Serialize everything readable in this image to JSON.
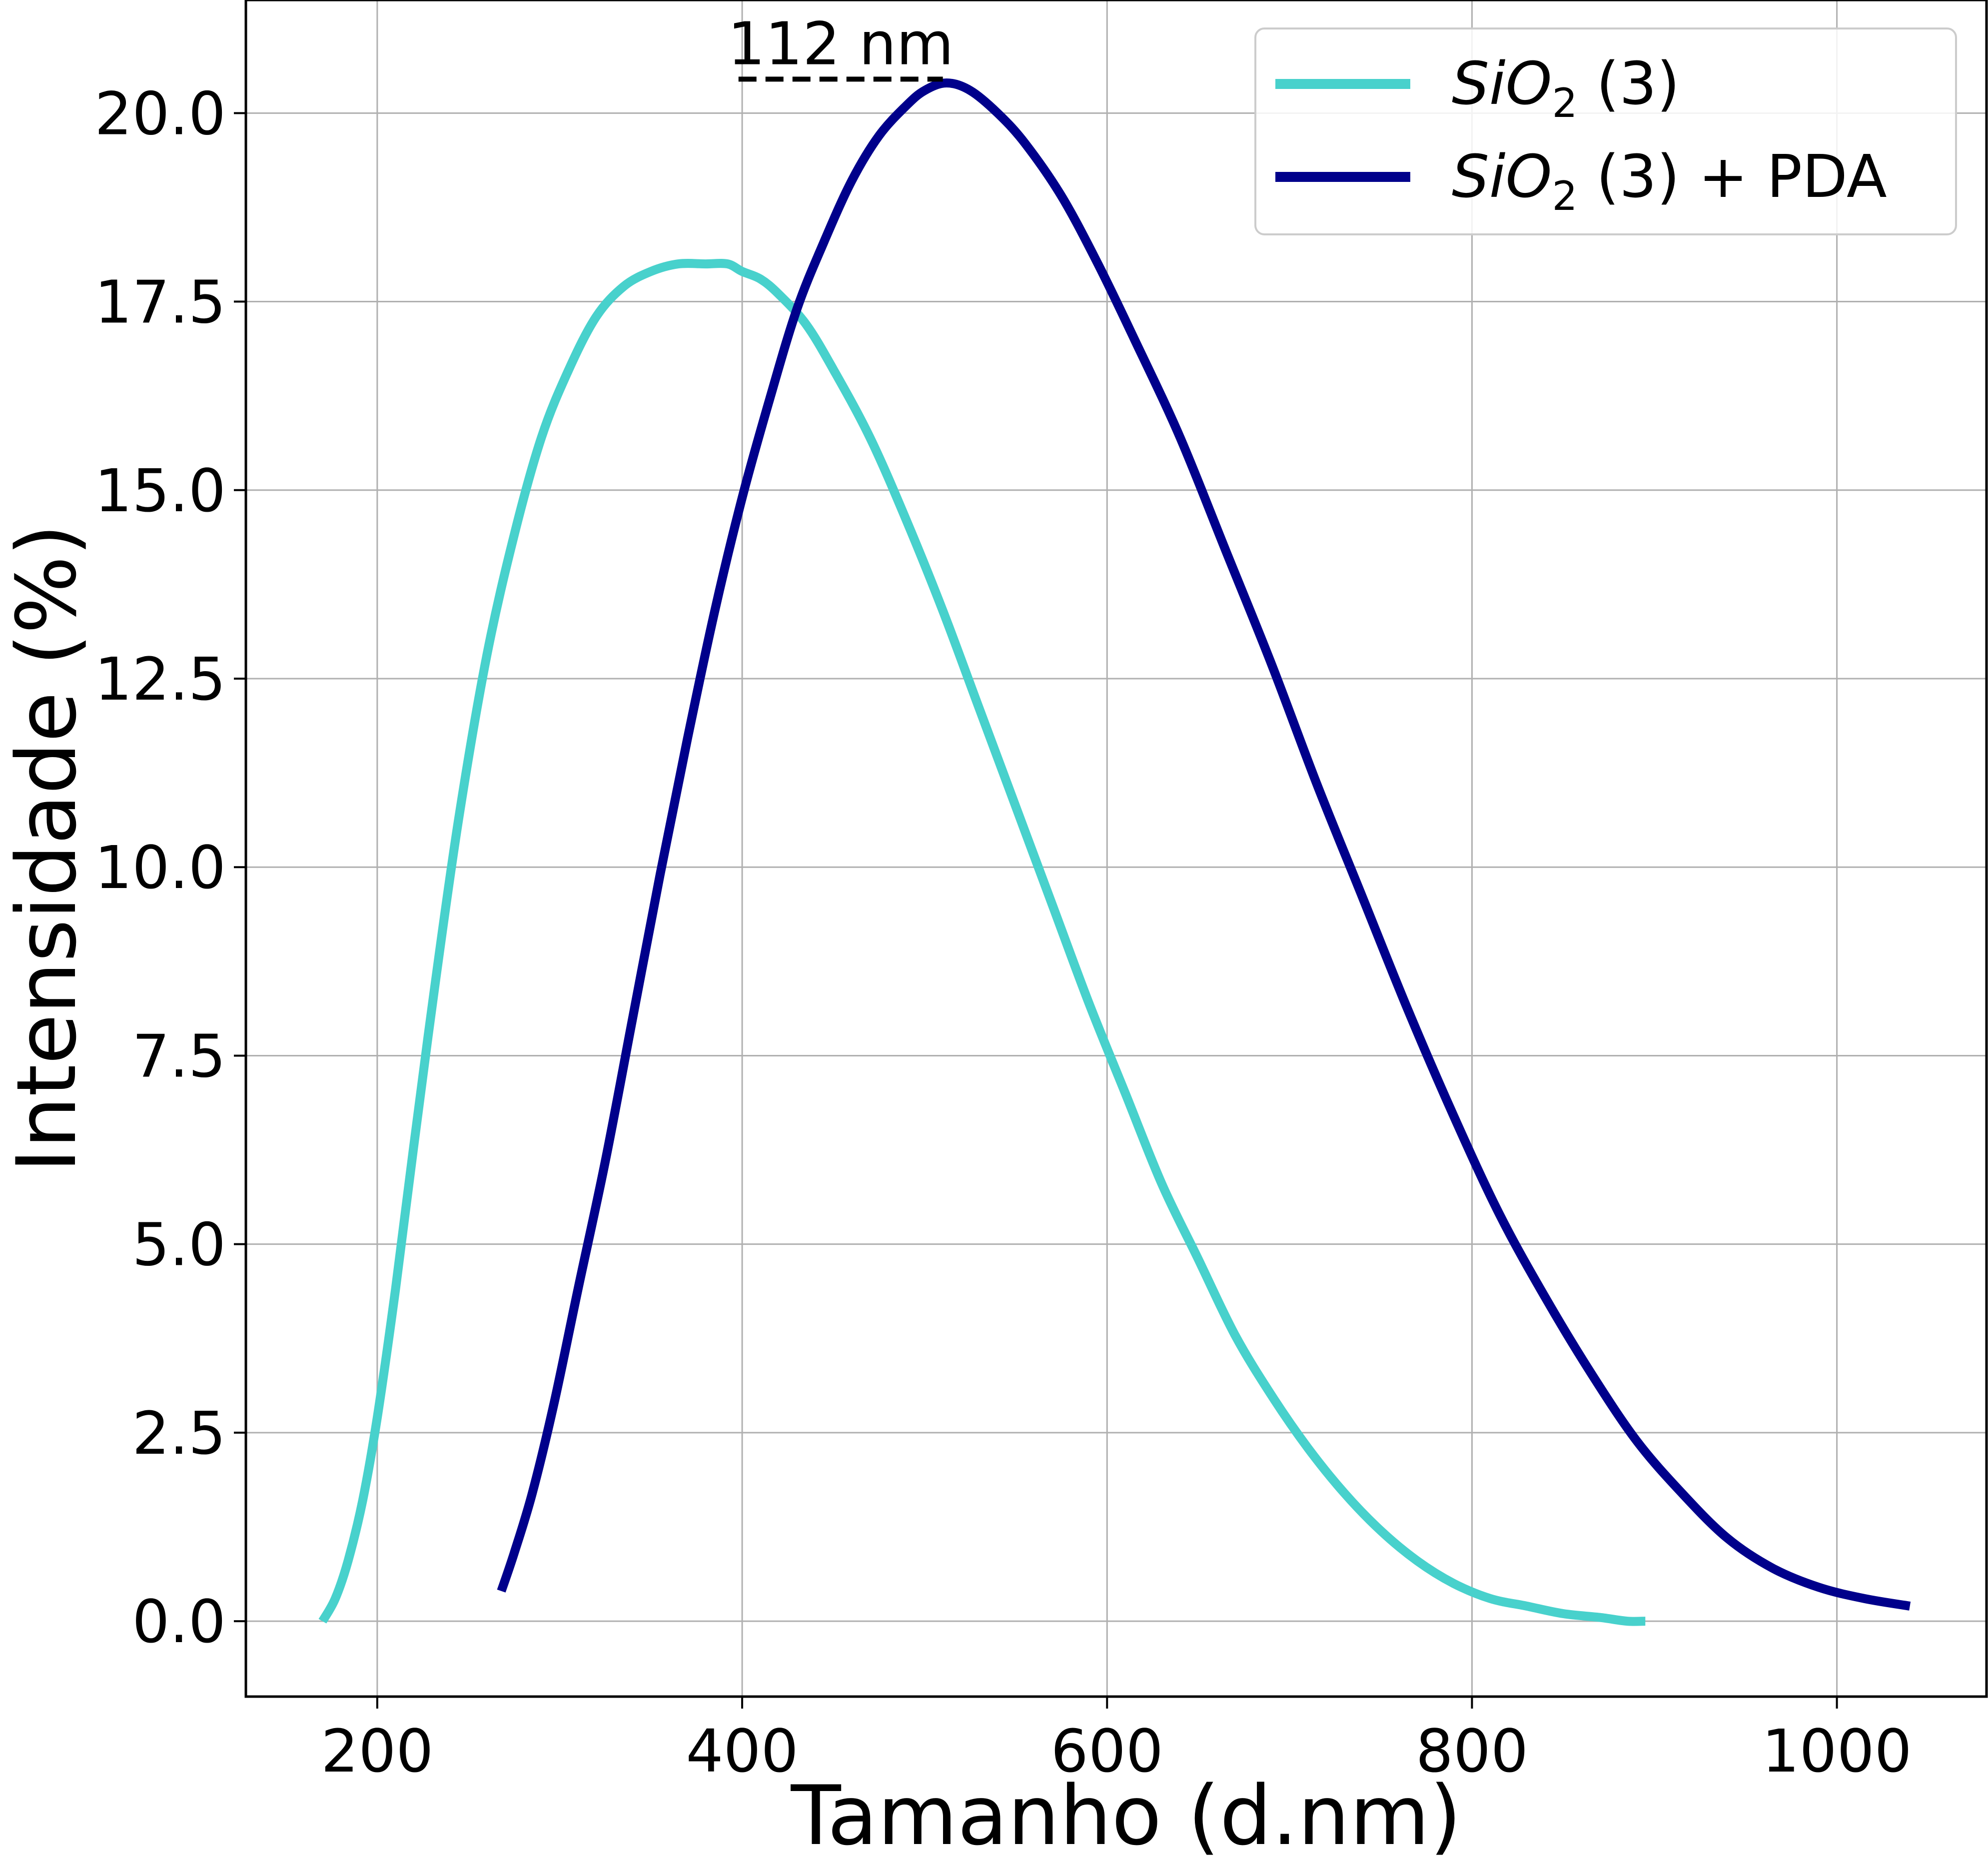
{
  "chart_data": {
    "type": "line",
    "xlabel": "Tamanho (d.nm)",
    "ylabel": "Intensidade (%)",
    "xlim": [
      128,
      1082
    ],
    "ylim": [
      -1.0,
      21.5
    ],
    "xticks": [
      200,
      400,
      600,
      800,
      1000
    ],
    "yticks": [
      0.0,
      2.5,
      5.0,
      7.5,
      10.0,
      12.5,
      15.0,
      17.5,
      20.0
    ],
    "xtick_labels": [
      "200",
      "400",
      "600",
      "800",
      "1000"
    ],
    "ytick_labels": [
      "0.0",
      "2.5",
      "5.0",
      "7.5",
      "10.0",
      "12.5",
      "15.0",
      "17.5",
      "20.0"
    ],
    "grid": true,
    "legend_position": "top-right",
    "series": [
      {
        "name_main": "SiO",
        "name_sub": "2",
        "name_rest": " (3)",
        "color": "#48d1cc",
        "x": [
          170,
          177,
          184,
          192,
          200,
          210,
          220,
          232,
          245,
          260,
          275,
          290,
          305,
          320,
          335,
          350,
          365,
          380,
          392,
          400,
          410,
          420,
          435,
          450,
          470,
          490,
          510,
          530,
          550,
          570,
          590,
          610,
          630,
          650,
          670,
          690,
          710,
          730,
          750,
          770,
          790,
          810,
          830,
          850,
          870,
          885,
          895
        ],
        "y": [
          0.0,
          0.3,
          0.8,
          1.6,
          2.7,
          4.4,
          6.3,
          8.5,
          10.7,
          12.8,
          14.4,
          15.7,
          16.6,
          17.3,
          17.7,
          17.9,
          18.0,
          18.0,
          18.0,
          17.9,
          17.8,
          17.6,
          17.2,
          16.6,
          15.7,
          14.6,
          13.4,
          12.1,
          10.8,
          9.5,
          8.2,
          7.0,
          5.8,
          4.8,
          3.8,
          3.0,
          2.3,
          1.7,
          1.2,
          0.8,
          0.5,
          0.3,
          0.2,
          0.1,
          0.05,
          0.0,
          0.0
        ]
      },
      {
        "name_main": "SiO",
        "name_sub": "2",
        "name_rest": " (3) + PDA",
        "color": "#00008b",
        "x": [
          268,
          275,
          285,
          297,
          310,
          325,
          340,
          355,
          370,
          385,
          400,
          415,
          430,
          445,
          460,
          475,
          490,
          500,
          512,
          525,
          540,
          555,
          575,
          595,
          615,
          640,
          665,
          690,
          715,
          740,
          765,
          790,
          815,
          840,
          865,
          890,
          915,
          940,
          965,
          990,
          1015,
          1040
        ],
        "y": [
          0.4,
          0.9,
          1.7,
          2.9,
          4.4,
          6.1,
          8.0,
          9.9,
          11.7,
          13.4,
          14.9,
          16.2,
          17.4,
          18.3,
          19.1,
          19.7,
          20.1,
          20.3,
          20.4,
          20.3,
          20.0,
          19.6,
          18.9,
          18.0,
          17.0,
          15.7,
          14.2,
          12.7,
          11.1,
          9.6,
          8.1,
          6.7,
          5.4,
          4.3,
          3.3,
          2.4,
          1.7,
          1.1,
          0.7,
          0.45,
          0.3,
          0.2
        ]
      }
    ],
    "annotation": {
      "text": "112 nm",
      "x_start": 398,
      "x_end": 510,
      "y": 20.45
    }
  }
}
